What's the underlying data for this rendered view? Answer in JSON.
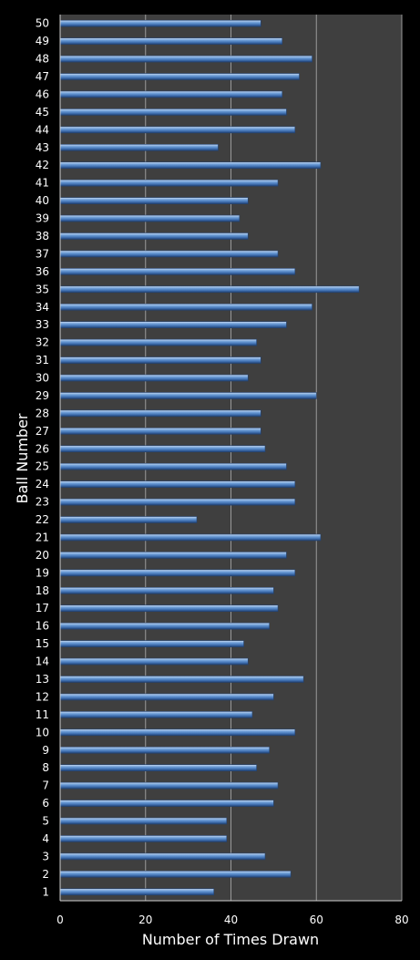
{
  "chart_data": {
    "type": "bar",
    "orientation": "horizontal",
    "title": "",
    "xlabel": "Number of Times Drawn",
    "ylabel": "Ball Number",
    "xlim": [
      0,
      80
    ],
    "xticks": [
      0,
      20,
      40,
      60,
      80
    ],
    "grid": "vertical",
    "legend": "none",
    "colors": {
      "background": "#000000",
      "plot_area": "#3f3f3f",
      "bar": "#4f81bd",
      "gridline": "#9a9a9a",
      "text": "#ffffff"
    },
    "categories": [
      "1",
      "2",
      "3",
      "4",
      "5",
      "6",
      "7",
      "8",
      "9",
      "10",
      "11",
      "12",
      "13",
      "14",
      "15",
      "16",
      "17",
      "18",
      "19",
      "20",
      "21",
      "22",
      "23",
      "24",
      "25",
      "26",
      "27",
      "28",
      "29",
      "30",
      "31",
      "32",
      "33",
      "34",
      "35",
      "36",
      "37",
      "38",
      "39",
      "40",
      "41",
      "42",
      "43",
      "44",
      "45",
      "46",
      "47",
      "48",
      "49",
      "50"
    ],
    "values": [
      36,
      54,
      48,
      39,
      39,
      50,
      51,
      46,
      49,
      55,
      45,
      50,
      57,
      44,
      43,
      49,
      51,
      50,
      55,
      53,
      61,
      32,
      55,
      55,
      53,
      48,
      47,
      47,
      60,
      44,
      47,
      46,
      53,
      59,
      70,
      55,
      51,
      44,
      42,
      44,
      51,
      61,
      37,
      55,
      53,
      52,
      56,
      59,
      52,
      47
    ]
  }
}
